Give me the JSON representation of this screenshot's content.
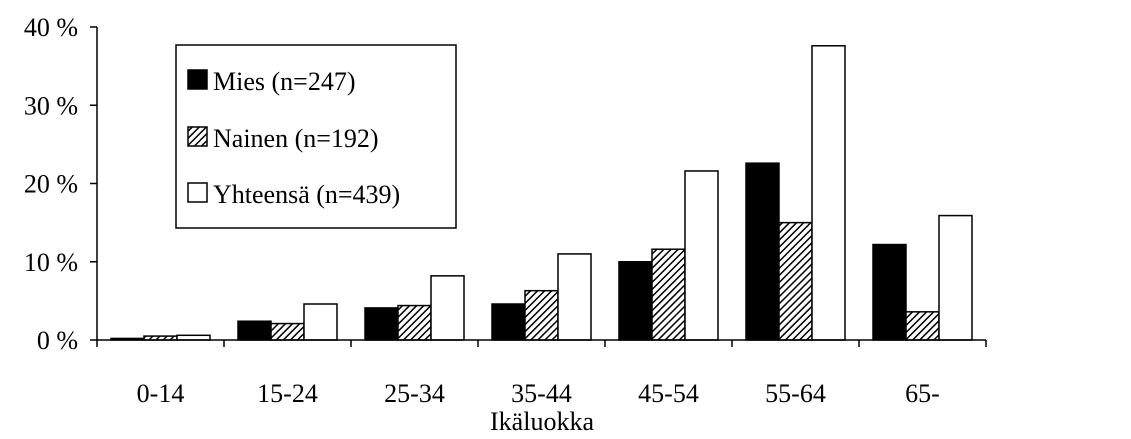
{
  "chart_data": {
    "type": "bar",
    "title": "",
    "xlabel": "Ikäluokka",
    "ylabel": "",
    "ylim": [
      0,
      40
    ],
    "yticks": [
      "0 %",
      "10 %",
      "20 %",
      "30 %",
      "40 %"
    ],
    "categories": [
      "0-14",
      "15-24",
      "25-34",
      "35-44",
      "45-54",
      "55-64",
      "65-"
    ],
    "series": [
      {
        "name": "Mies (n=247)",
        "values": [
          0.2,
          2.4,
          4.1,
          4.6,
          10.0,
          22.6,
          12.2
        ],
        "color": "#000000",
        "pattern": "solid"
      },
      {
        "name": "Nainen (n=192)",
        "values": [
          0.5,
          2.1,
          4.4,
          6.3,
          11.6,
          15.0,
          3.6
        ],
        "color": "#8c8c8c",
        "pattern": "diagonal-hatch"
      },
      {
        "name": "Yhteensä (n=439)",
        "values": [
          0.6,
          4.6,
          8.2,
          11.0,
          21.6,
          37.6,
          15.9
        ],
        "color": "#ffffff",
        "pattern": "empty"
      }
    ],
    "grid": false,
    "legend_position": "top-left"
  }
}
